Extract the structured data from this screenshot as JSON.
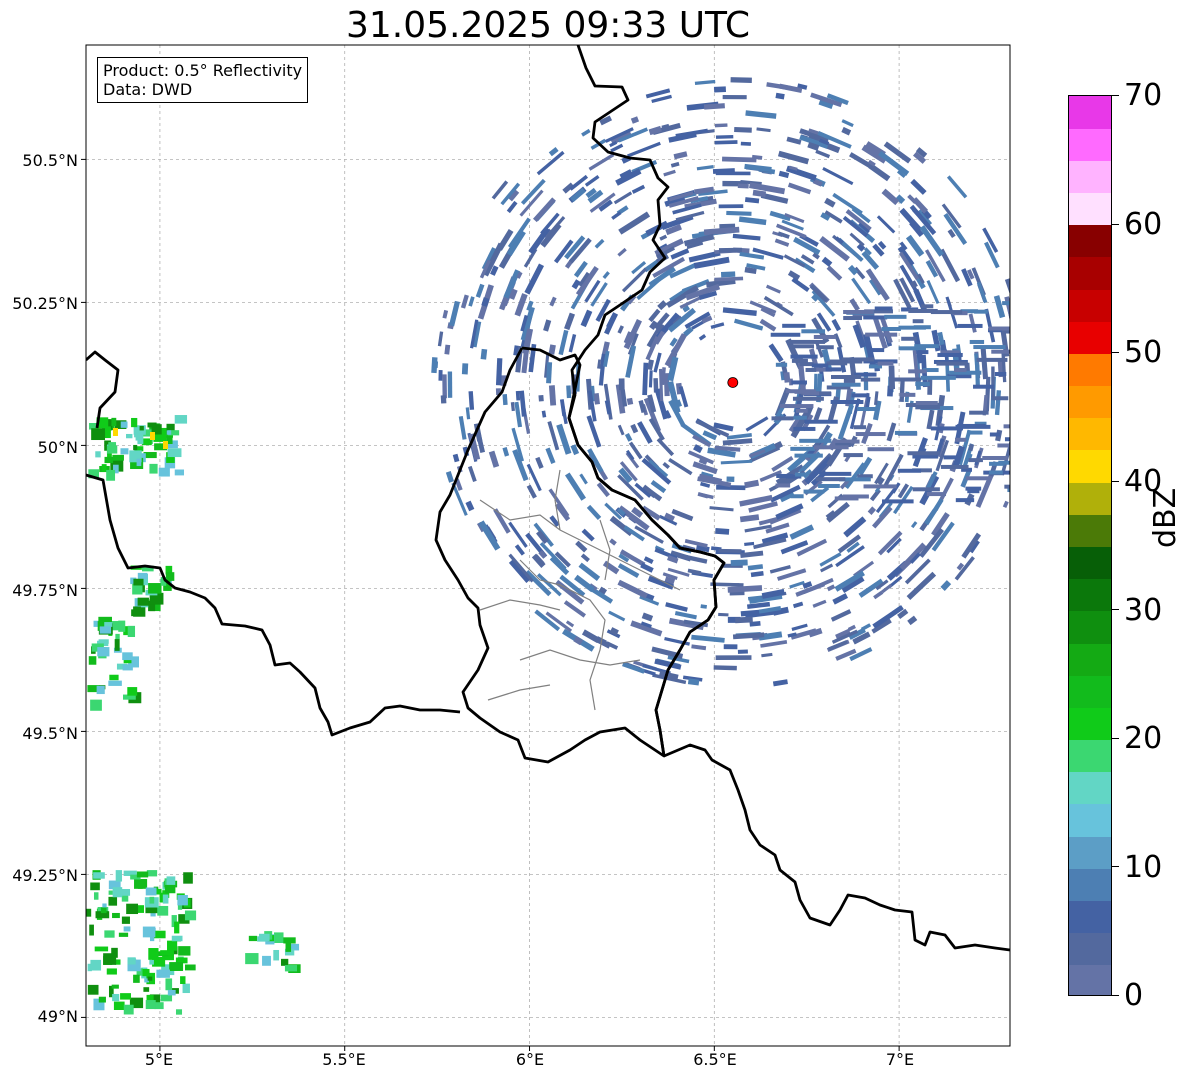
{
  "title": "31.05.2025 09:33 UTC",
  "info_box": {
    "product": "Product: 0.5° Reflectivity",
    "data": "Data: DWD"
  },
  "map": {
    "lon_range": [
      4.8,
      7.3
    ],
    "lat_range": [
      48.95,
      50.7
    ],
    "gridlines": true,
    "radar_site": {
      "lon": 6.55,
      "lat": 50.11,
      "marker_color": "#ff0000"
    },
    "y_ticks": [
      "50.5°N",
      "50.25°N",
      "50°N",
      "49.75°N",
      "49.5°N",
      "49.25°N",
      "49°N"
    ],
    "x_ticks": [
      "5°E",
      "5.5°E",
      "6°E",
      "6.5°E",
      "7°E"
    ],
    "coverage_color": "#4a62a6"
  },
  "colorbar": {
    "label": "dBZ",
    "min": 0,
    "max": 70,
    "step": 2.5,
    "tick_labels": [
      "0",
      "10",
      "20",
      "30",
      "40",
      "50",
      "60",
      "70"
    ],
    "colors": [
      "#6473a6",
      "#53699e",
      "#4462a3",
      "#4d7fb3",
      "#5c9ec6",
      "#67c3dc",
      "#62d6c5",
      "#3bd771",
      "#10cb19",
      "#12bb1c",
      "#14aa14",
      "#0f8f0f",
      "#0b780b",
      "#075f07",
      "#4b7a07",
      "#b0b00a",
      "#ffd900",
      "#ffb800",
      "#ff9a00",
      "#ff7a00",
      "#e80000",
      "#c80000",
      "#a80000",
      "#880000",
      "#ffe0ff",
      "#ffb3ff",
      "#ff6aff",
      "#e838e8"
    ]
  }
}
